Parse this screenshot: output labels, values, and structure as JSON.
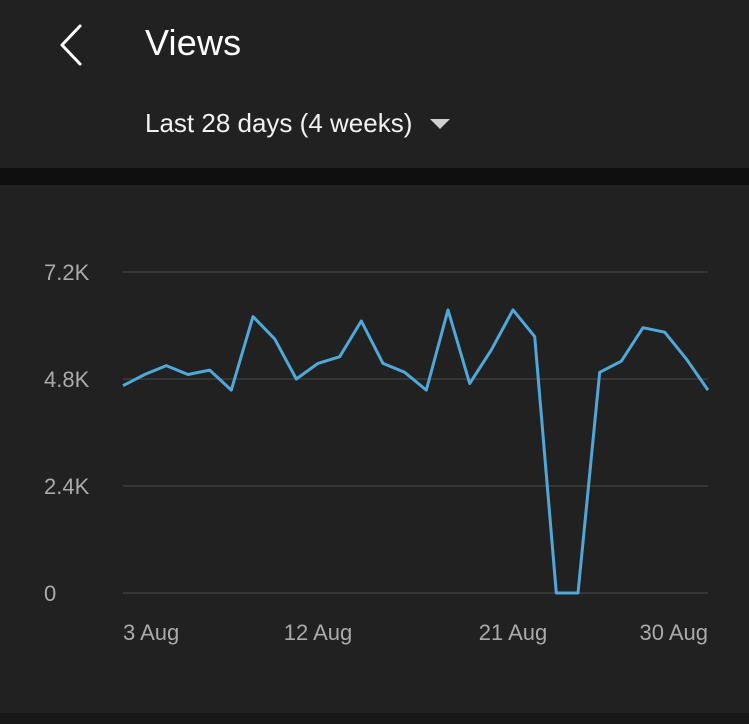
{
  "header": {
    "title": "Views",
    "range_label": "Last 28 days (4 weeks)"
  },
  "icons": {
    "back": "chevron-left-icon",
    "dropdown": "caret-down-icon"
  },
  "colors": {
    "background": "#212121",
    "line": "#3ea6ff",
    "gridline": "#3d3d3d"
  },
  "chart_data": {
    "type": "line",
    "title": "",
    "xlabel": "",
    "ylabel": "",
    "x_tick_labels": [
      "3 Aug",
      "12 Aug",
      "21 Aug",
      "30 Aug"
    ],
    "y_tick_labels": [
      "7.2K",
      "4.8K",
      "2.4K",
      "0"
    ],
    "y_ticks": [
      7200,
      4800,
      2400,
      0
    ],
    "ylim": [
      0,
      7200
    ],
    "grid": true,
    "series": [
      {
        "values": [
          4650,
          4900,
          5100,
          4900,
          5000,
          4550,
          6200,
          5700,
          4800,
          5150,
          5300,
          6100,
          5150,
          4950,
          4550,
          6350,
          4700,
          5450,
          6350,
          5750,
          0,
          0,
          4950,
          5200,
          5950,
          5850,
          5250,
          4550
        ]
      }
    ]
  }
}
